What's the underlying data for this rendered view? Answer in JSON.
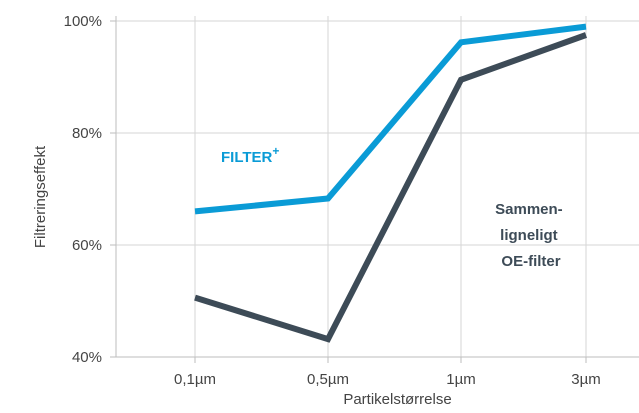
{
  "chart_data": {
    "type": "line",
    "title": "",
    "xlabel": "Partikelstørrelse",
    "ylabel": "Filtreringseffekt",
    "categories": [
      "0,1µm",
      "0,5µm",
      "1µm",
      "3µm"
    ],
    "ylim": [
      40,
      100
    ],
    "yticks": [
      40,
      60,
      80,
      100
    ],
    "ytick_labels": [
      "40%",
      "60%",
      "80%",
      "100%"
    ],
    "grid": true,
    "series": [
      {
        "name": "FILTER",
        "name_superscript": "+",
        "color": "#0a9bd6",
        "values": [
          66,
          68.3,
          96.2,
          99
        ]
      },
      {
        "name": "Sammen- ligneligt OE-filter",
        "name_lines": [
          "Sammen-",
          "ligneligt",
          "OE-filter"
        ],
        "color": "#3d4b57",
        "values": [
          50.6,
          43.2,
          89.5,
          97.5
        ]
      }
    ]
  }
}
